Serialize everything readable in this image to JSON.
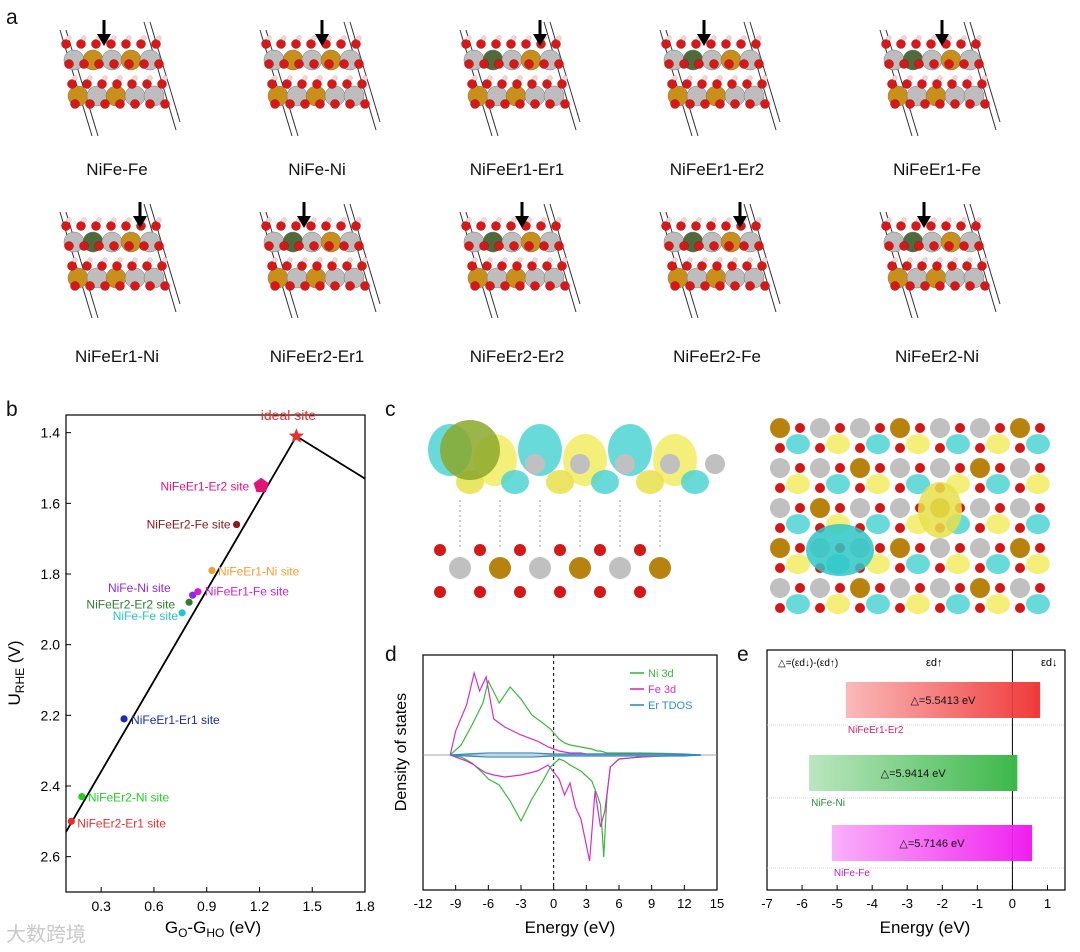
{
  "panel_a": {
    "letter": "a",
    "structures": [
      {
        "label": "NiFe-Fe",
        "er": false
      },
      {
        "label": "NiFe-Ni",
        "er": false
      },
      {
        "label": "NiFeEr1-Er1",
        "er": true
      },
      {
        "label": "NiFeEr1-Er2",
        "er": true
      },
      {
        "label": "NiFeEr1-Fe",
        "er": true
      },
      {
        "label": "NiFeEr1-Ni",
        "er": true
      },
      {
        "label": "NiFeEr2-Er1",
        "er": true
      },
      {
        "label": "NiFeEr2-Er2",
        "er": true
      },
      {
        "label": "NiFeEr2-Fe",
        "er": true
      },
      {
        "label": "NiFeEr2-Ni",
        "er": true
      }
    ]
  },
  "panel_c": {
    "letter": "c"
  },
  "chart_data": [
    {
      "id": "b",
      "type": "line",
      "letter": "b",
      "xlabel_main": "G",
      "xlabel_sub1": "O",
      "xlabel_mid": "-G",
      "xlabel_sub2": "HO",
      "xlabel_unit": " (eV)",
      "ylabel_main": "U",
      "ylabel_sub": "RHE",
      "ylabel_unit": " (V)",
      "xlim": [
        0.1,
        1.8
      ],
      "ylim": [
        1.35,
        2.7
      ],
      "xticks": [
        0.3,
        0.6,
        0.9,
        1.2,
        1.5,
        1.8
      ],
      "xtick_labels": [
        "0.3",
        "0.6",
        "0.9",
        "1.2",
        "1.5",
        "1.8"
      ],
      "yticks": [
        1.4,
        1.6,
        1.8,
        2.0,
        2.2,
        2.4,
        2.6
      ],
      "ytick_labels": [
        "1.4",
        "1.6",
        "1.8",
        "2.0",
        "2.2",
        "2.4",
        "2.6"
      ],
      "volcano_x": [
        0.1,
        1.41,
        1.8
      ],
      "volcano_y": [
        2.53,
        1.41,
        1.53
      ],
      "points": [
        {
          "label": "ideal site",
          "x": 1.41,
          "y": 1.41,
          "color": "#e53030",
          "marker": "star"
        },
        {
          "label": "NiFeEr1-Er2 site",
          "x": 1.21,
          "y": 1.55,
          "color": "#e0157a",
          "marker": "pentagon"
        },
        {
          "label": "NiFeEr2-Fe site",
          "x": 1.07,
          "y": 1.66,
          "color": "#8b1a1a",
          "marker": "dot"
        },
        {
          "label": "NiFeEr1-Ni site",
          "x": 0.93,
          "y": 1.79,
          "color": "#f0a030",
          "marker": "dot"
        },
        {
          "label": "NiFe-Ni site",
          "x": 0.82,
          "y": 1.86,
          "color": "#8a2be2",
          "marker": "dot"
        },
        {
          "label": "NiFeEr1-Fe site",
          "x": 0.85,
          "y": 1.85,
          "color": "#d020d0",
          "marker": "dot"
        },
        {
          "label": "NiFeEr2-Er2 site",
          "x": 0.8,
          "y": 1.88,
          "color": "#2e7d32",
          "marker": "dot"
        },
        {
          "label": "NiFe-Fe site",
          "x": 0.76,
          "y": 1.91,
          "color": "#26c6c6",
          "marker": "dot"
        },
        {
          "label": "NiFeEr1-Er1 site",
          "x": 0.43,
          "y": 2.21,
          "color": "#1a2ab0",
          "marker": "dot"
        },
        {
          "label": "NiFeEr2-Ni site",
          "x": 0.19,
          "y": 2.43,
          "color": "#22d022",
          "marker": "dot"
        },
        {
          "label": "NiFeEr2-Er1 site",
          "x": 0.13,
          "y": 2.5,
          "color": "#e53030",
          "marker": "dot"
        }
      ]
    },
    {
      "id": "d",
      "type": "line",
      "letter": "d",
      "xlabel": "Energy (eV)",
      "ylabel": "Density of states",
      "xlim": [
        -12,
        15
      ],
      "xticks": [
        -12,
        -9,
        -6,
        -3,
        0,
        3,
        6,
        9,
        12,
        15
      ],
      "xtick_labels": [
        "-12",
        "-9",
        "-6",
        "-3",
        "0",
        "3",
        "6",
        "9",
        "12",
        "15"
      ],
      "series": [
        {
          "name": "Ni 3d",
          "color": "#3cb83c",
          "x": [
            -9.5,
            -8.5,
            -7.5,
            -6.5,
            -6,
            -5,
            -4,
            -3,
            -2,
            -1,
            -0.3,
            0.5,
            1,
            1.5,
            2.5,
            3.5,
            4,
            4.3,
            4.6,
            4.9,
            5.2,
            6,
            8,
            10,
            12,
            13.5
          ],
          "up": [
            0,
            0.5,
            1.5,
            2.6,
            3.7,
            2.6,
            3.4,
            2.8,
            2.0,
            1.6,
            1.3,
            0.8,
            0.6,
            0.5,
            0.4,
            0.3,
            0.2,
            0.2,
            0.15,
            0.1,
            0.1,
            0.1,
            0.1,
            0.08,
            0.05,
            0
          ],
          "down": [
            0,
            -0.1,
            -0.4,
            -0.9,
            -1.2,
            -1.5,
            -2.3,
            -3.3,
            -2.2,
            -1.3,
            -0.6,
            -0.2,
            -0.3,
            -0.5,
            -0.8,
            -1.3,
            -2.0,
            -2.5,
            -5.1,
            -2.0,
            -0.6,
            -0.2,
            -0.1,
            -0.05,
            -0.05,
            0
          ]
        },
        {
          "name": "Fe 3d",
          "color": "#d230c8",
          "x": [
            -9.5,
            -9,
            -8,
            -7.3,
            -6.8,
            -6.2,
            -5.5,
            -4.5,
            -3,
            -1.5,
            -0.5,
            0.5,
            1,
            1.5,
            2,
            2.5,
            3,
            3.3,
            3.8,
            4.3,
            4.7,
            5.2,
            6,
            8,
            10,
            12,
            13.5
          ],
          "up": [
            0,
            1.2,
            2.5,
            4.1,
            3.2,
            3.9,
            1.8,
            1.4,
            1.0,
            0.7,
            0.4,
            0.2,
            0.15,
            0.1,
            0.1,
            0.1,
            0.05,
            0.05,
            0.05,
            0.05,
            0.05,
            0.05,
            0.05,
            0.05,
            0.05,
            0.03,
            0
          ],
          "down": [
            0,
            -0.1,
            -0.3,
            -0.5,
            -0.7,
            -0.9,
            -1.0,
            -1.1,
            -1.0,
            -0.8,
            -0.5,
            -1.2,
            -2.0,
            -1.4,
            -2.6,
            -3.2,
            -4.5,
            -5.3,
            -1.8,
            -3.6,
            -2.8,
            -0.6,
            -0.2,
            -0.1,
            -0.05,
            -0.03,
            0
          ]
        },
        {
          "name": "Er TDOS",
          "color": "#2a8fc8",
          "x": [
            -9.5,
            -8,
            -6,
            -4,
            -2,
            0,
            2,
            4,
            6,
            8,
            10,
            12,
            13.5
          ],
          "up": [
            0,
            0.05,
            0.1,
            0.1,
            0.1,
            0.05,
            0.05,
            0.05,
            0.05,
            0.05,
            0.05,
            0.03,
            0
          ],
          "down": [
            0,
            -0.05,
            -0.1,
            -0.1,
            -0.1,
            -0.05,
            -0.05,
            -0.05,
            -0.05,
            -0.05,
            -0.05,
            -0.03,
            0
          ]
        }
      ]
    },
    {
      "id": "e",
      "type": "bar",
      "letter": "e",
      "xlabel": "Energy (eV)",
      "xlim": [
        -7,
        1.5
      ],
      "xticks": [
        -7,
        -6,
        -5,
        -4,
        -3,
        -2,
        -1,
        0,
        1
      ],
      "xtick_labels": [
        "-7",
        "-6",
        "-5",
        "-4",
        "-3",
        "-2",
        "-1",
        "0",
        "1"
      ],
      "legend_text": "△=(εd↓)-(εd↑)",
      "up_label": "εd↑",
      "down_label": "εd↓",
      "bars": [
        {
          "name": "NiFeEr1-Er2",
          "start": -4.75,
          "end": 0.79,
          "delta_label": "△=5.5413 eV",
          "color": "#f03a3a",
          "text_color": "#d0206a"
        },
        {
          "name": "NiFe-Ni",
          "start": -5.8,
          "end": 0.14,
          "delta_label": "△=5.9414 eV",
          "color": "#3cb84a",
          "text_color": "#2e8b3a"
        },
        {
          "name": "NiFe-Fe",
          "start": -5.15,
          "end": 0.56,
          "delta_label": "△=5.7146 eV",
          "color": "#f020f0",
          "text_color": "#c020c0"
        }
      ]
    }
  ],
  "watermark": "大数跨境"
}
